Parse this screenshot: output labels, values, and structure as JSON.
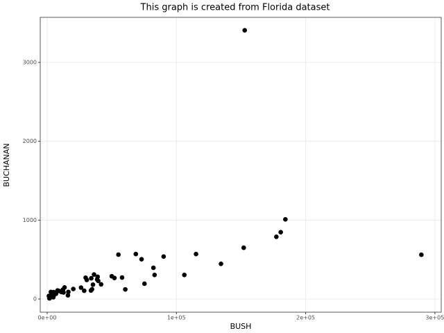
{
  "chart_data": {
    "type": "scatter",
    "title": "This graph is created from Florida dataset",
    "xlabel": "BUSH",
    "ylabel": "BUCHANAN",
    "color": "#000000",
    "grid": true,
    "xlim": [
      -5370,
      304900
    ],
    "ylim": [
      -167,
      3571
    ],
    "xticks": [
      {
        "value": 0,
        "label": "0e+00"
      },
      {
        "value": 100000,
        "label": "1e+05"
      },
      {
        "value": 200000,
        "label": "2e+05"
      },
      {
        "value": 300000,
        "label": "3e+05"
      }
    ],
    "yticks": [
      0,
      1000,
      2000,
      3000
    ],
    "x": [
      34124,
      5610,
      38637,
      5414,
      115185,
      177323,
      2873,
      35426,
      29767,
      41736,
      60450,
      10964,
      289533,
      4256,
      2698,
      152082,
      73029,
      12608,
      2448,
      4750,
      3300,
      1841,
      3546,
      2153,
      3764,
      4743,
      30646,
      20206,
      180713,
      5011,
      28635,
      9138,
      2481,
      1669,
      49963,
      106141,
      39053,
      6863,
      1317,
      3038,
      57948,
      55135,
      33864,
      16059,
      16404,
      52043,
      5058,
      134476,
      26212,
      152846,
      68581,
      184312,
      90101,
      13439,
      39497,
      34705,
      36248,
      83100,
      75293,
      12126,
      8014,
      4051,
      2326,
      82214,
      4511,
      12176,
      4983
    ],
    "values": [
      263,
      73,
      248,
      65,
      570,
      789,
      90,
      182,
      270,
      186,
      122,
      89,
      561,
      36,
      29,
      650,
      504,
      83,
      33,
      39,
      29,
      9,
      71,
      24,
      30,
      22,
      242,
      127,
      847,
      76,
      105,
      102,
      29,
      10,
      289,
      305,
      282,
      67,
      39,
      29,
      272,
      563,
      108,
      47,
      90,
      267,
      43,
      446,
      145,
      3407,
      570,
      1010,
      538,
      147,
      229,
      124,
      311,
      305,
      194,
      114,
      108,
      27,
      37,
      396,
      46,
      120,
      88
    ]
  }
}
